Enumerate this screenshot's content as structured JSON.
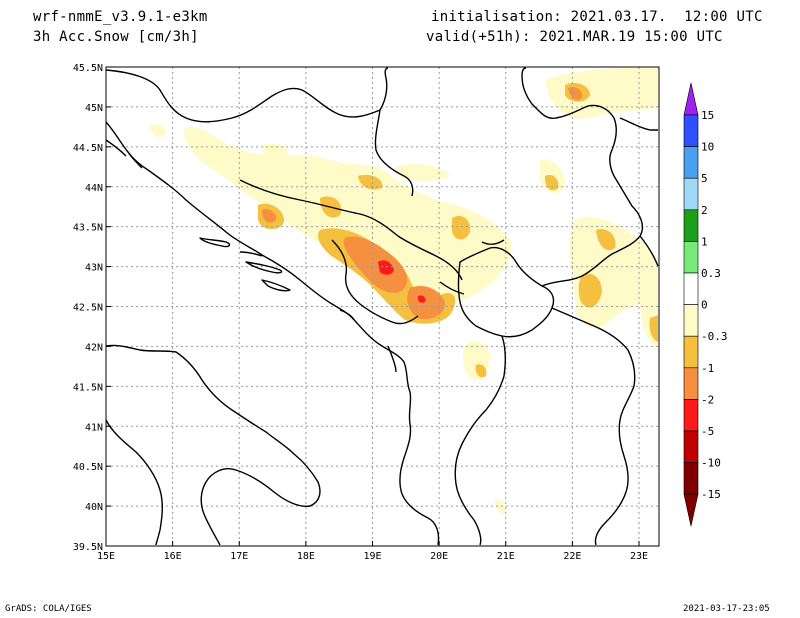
{
  "header": {
    "model": "wrf-nmmE_v3.9.1-e3km",
    "field": "3h Acc.Snow [cm/3h]",
    "init": "initialisation: 2021.03.17.  12:00 UTC",
    "valid": "valid(+51h): 2021.MAR.19 15:00 UTC"
  },
  "footer": {
    "left": "GrADS: COLA/IGES",
    "right": "2021-03-17-23:05"
  },
  "map": {
    "lon_range": [
      15,
      23.3
    ],
    "lat_range": [
      39.5,
      45.5
    ],
    "lon_ticks": [
      "15E",
      "16E",
      "17E",
      "18E",
      "19E",
      "20E",
      "21E",
      "22E",
      "23E"
    ],
    "lat_ticks": [
      "39.5N",
      "40N",
      "40.5N",
      "41N",
      "41.5N",
      "42N",
      "42.5N",
      "43N",
      "43.5N",
      "44N",
      "44.5N",
      "45N",
      "45.5N"
    ],
    "grid": true
  },
  "colorbar": {
    "labels": [
      "15",
      "10",
      "5",
      "2",
      "1",
      "0.3",
      "0",
      "-0.3",
      "-1",
      "-2",
      "-5",
      "-10",
      "-15"
    ],
    "colors": [
      "#a020f0",
      "#3050ff",
      "#4aa0f0",
      "#a0d8f8",
      "#1aa01a",
      "#78e878",
      "#ffffff",
      "#fffbc8",
      "#f5c040",
      "#f59040",
      "#ff1a1a",
      "#c00000",
      "#800000"
    ]
  }
}
